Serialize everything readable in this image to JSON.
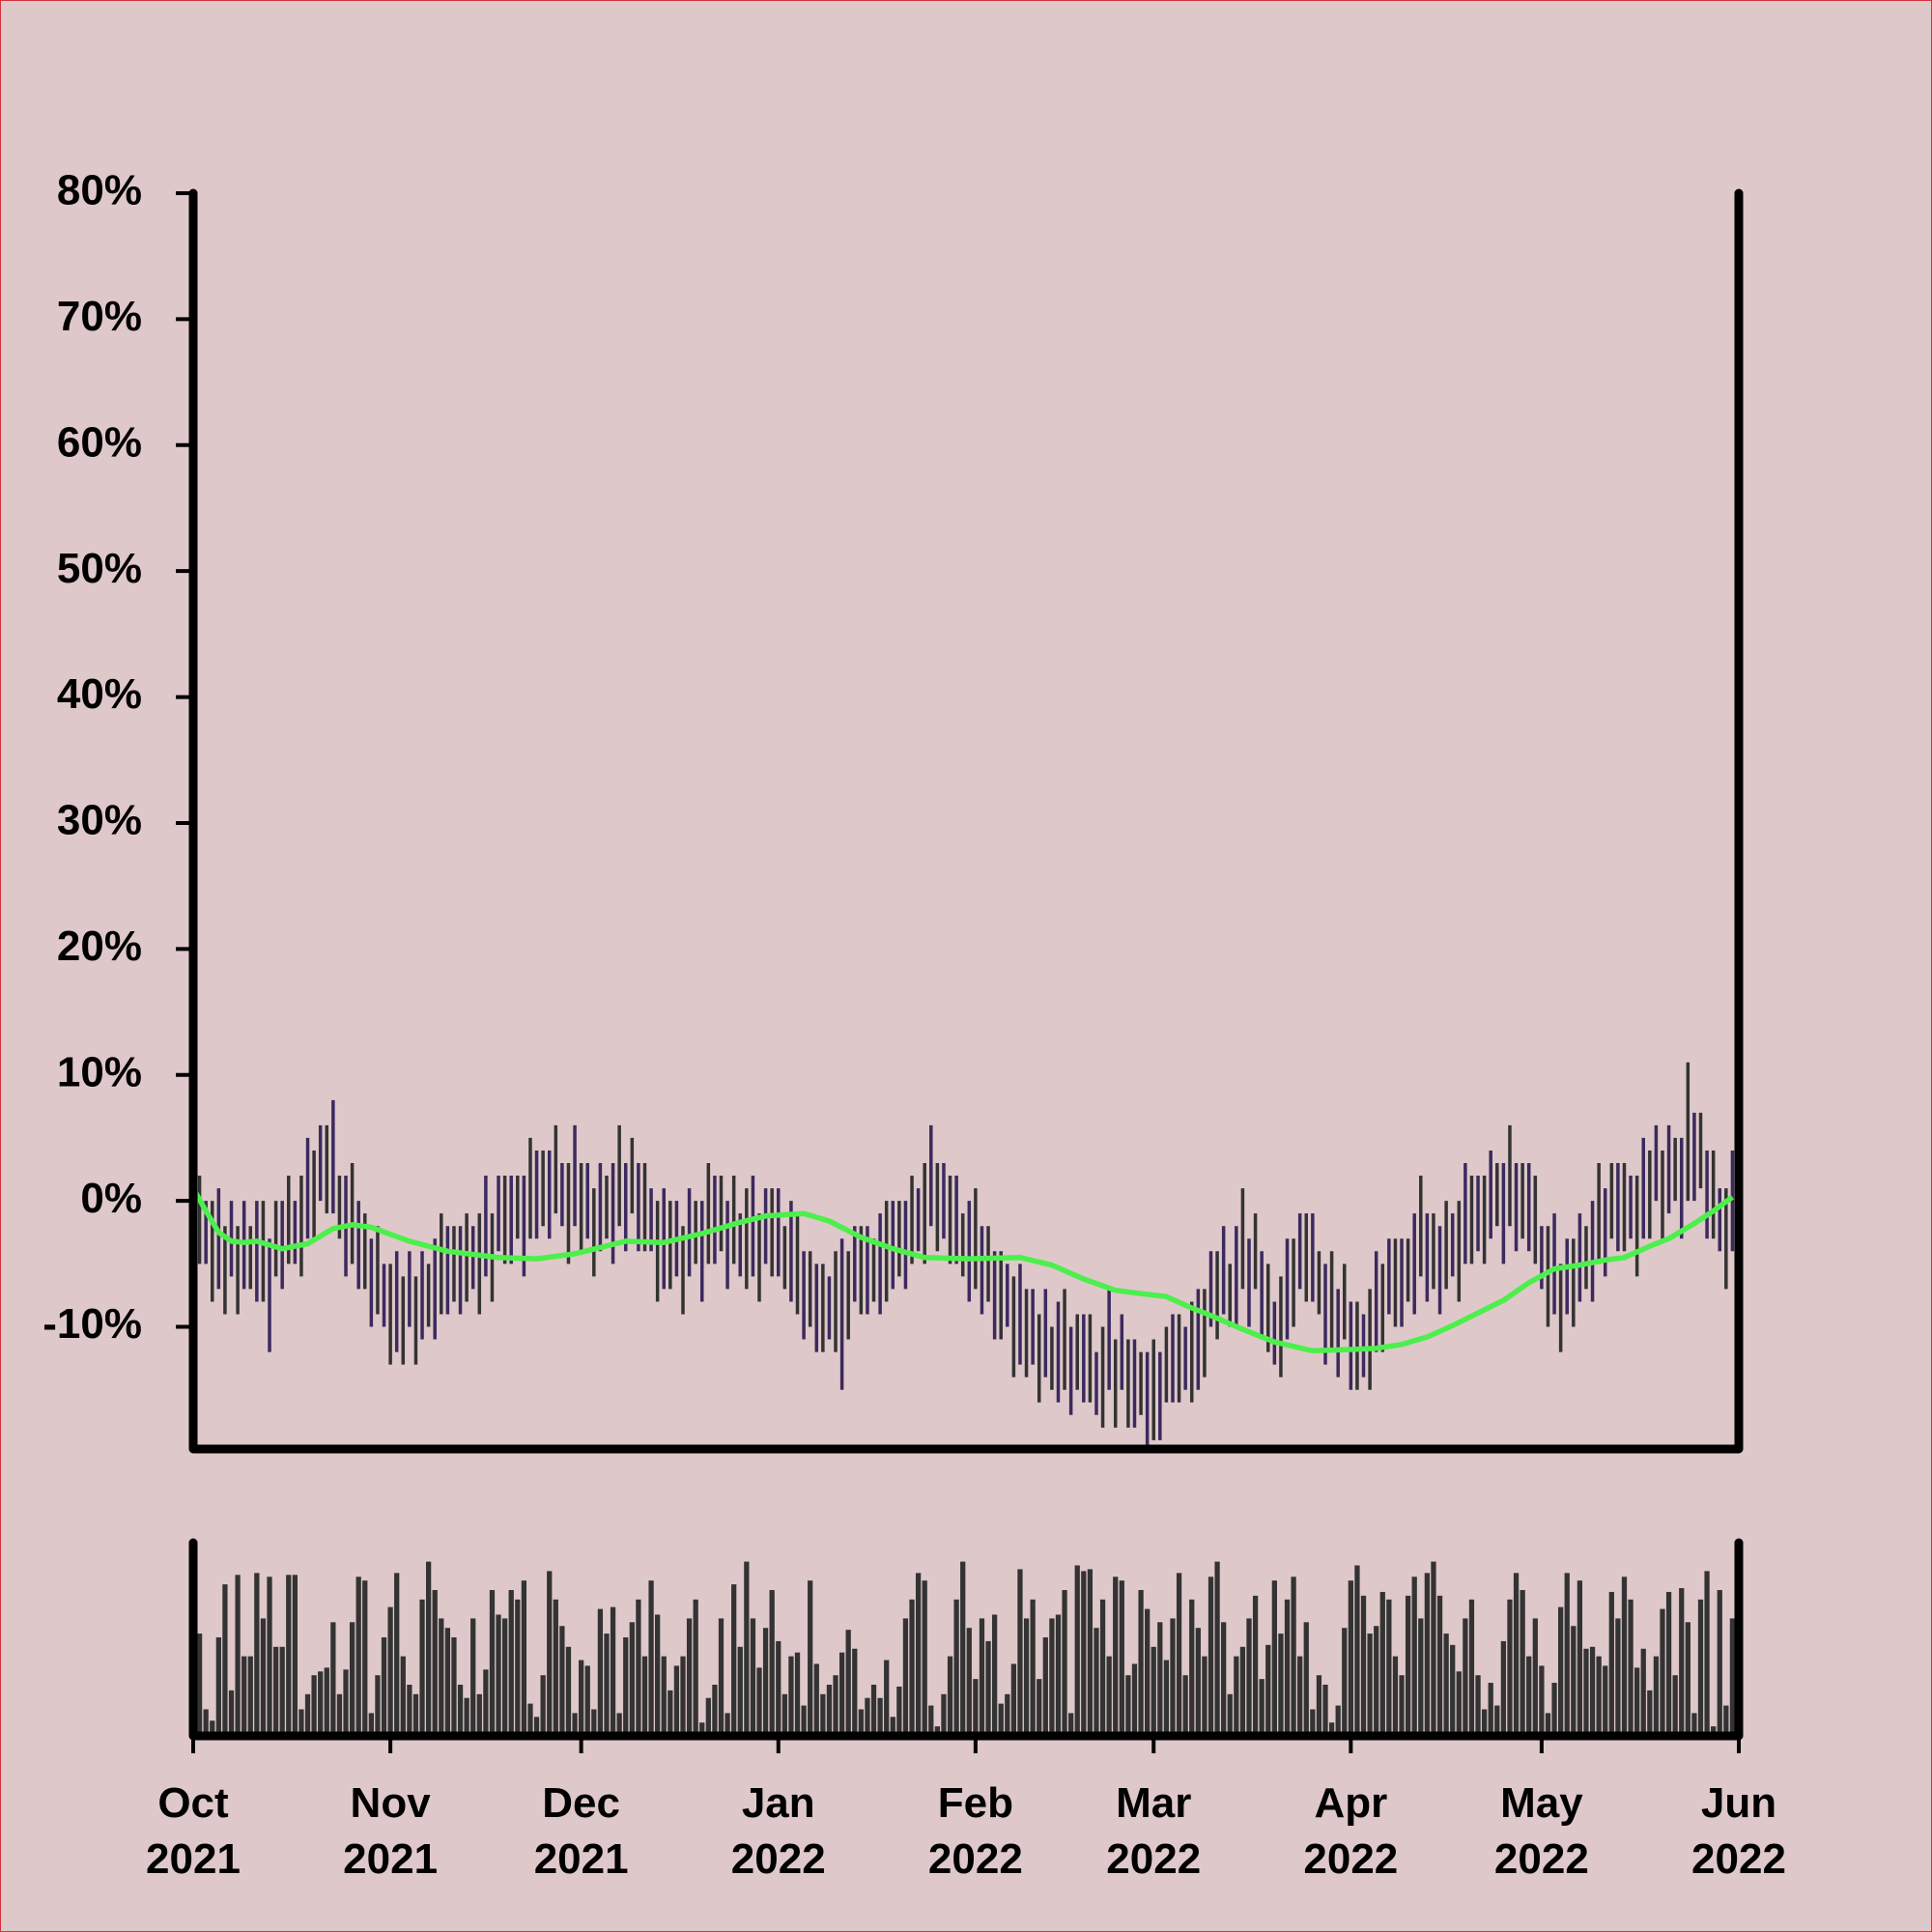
{
  "chart_data": [
    {
      "type": "hilo",
      "colors": [
        "#3b2a5e",
        "#333333"
      ],
      "ylim": [
        -19.7,
        80
      ],
      "xlim": [
        0,
        243
      ],
      "yticks": [
        {
          "value": -10,
          "label": "-10%"
        },
        {
          "value": 0,
          "label": "0%"
        },
        {
          "value": 10,
          "label": "10%"
        },
        {
          "value": 20,
          "label": "20%"
        },
        {
          "value": 30,
          "label": "30%"
        },
        {
          "value": 40,
          "label": "40%"
        },
        {
          "value": 50,
          "label": "50%"
        },
        {
          "value": 60,
          "label": "60%"
        },
        {
          "value": 70,
          "label": "70%"
        },
        {
          "value": 80,
          "label": "80%"
        }
      ],
      "x": [
        0,
        1,
        2,
        3,
        4,
        5,
        6,
        7,
        8,
        9,
        10,
        11,
        12,
        13,
        14,
        15,
        16,
        17,
        18,
        19,
        20,
        21,
        22,
        23,
        24,
        25,
        26,
        27,
        28,
        29,
        30,
        31,
        32,
        33,
        34,
        35,
        36,
        37,
        38,
        39,
        40,
        41,
        42,
        43,
        44,
        45,
        46,
        47,
        48,
        49,
        50,
        51,
        52,
        53,
        54,
        55,
        56,
        57,
        58,
        59,
        60,
        61,
        62,
        63,
        64,
        65,
        66,
        67,
        68,
        69,
        70,
        71,
        72,
        73,
        74,
        75,
        76,
        77,
        78,
        79,
        80,
        81,
        82,
        83,
        84,
        85,
        86,
        87,
        88,
        89,
        90,
        91,
        92,
        93,
        94,
        95,
        96,
        97,
        98,
        99,
        100,
        101,
        102,
        103,
        104,
        105,
        106,
        107,
        108,
        109,
        110,
        111,
        112,
        113,
        114,
        115,
        116,
        117,
        118,
        119,
        120,
        121,
        122,
        123,
        124,
        125,
        126,
        127,
        128,
        129,
        130,
        131,
        132,
        133,
        134,
        135,
        136,
        137,
        138,
        139,
        140,
        141,
        142,
        143,
        144,
        145,
        146,
        147,
        148,
        149,
        150,
        151,
        152,
        153,
        154,
        155,
        156,
        157,
        158,
        159,
        160,
        161,
        162,
        163,
        164,
        165,
        166,
        167,
        168,
        169,
        170,
        171,
        172,
        173,
        174,
        175,
        176,
        177,
        178,
        179,
        180,
        181,
        182,
        183,
        184,
        185,
        186,
        187,
        188,
        189,
        190,
        191,
        192,
        193,
        194,
        195,
        196,
        197,
        198,
        199,
        200,
        201,
        202,
        203,
        204,
        205,
        206,
        207,
        208,
        209,
        210,
        211,
        212,
        213,
        214,
        215,
        216,
        217,
        218,
        219,
        220,
        221,
        222,
        223,
        224,
        225,
        226,
        227,
        228,
        229,
        230,
        231,
        232,
        233,
        234,
        235,
        236,
        237,
        238,
        239,
        240,
        241,
        242
      ],
      "high": [
        2,
        2,
        0,
        0,
        1,
        -2,
        0,
        -2,
        0,
        -2,
        0,
        0,
        -3,
        0,
        0,
        2,
        0,
        2,
        5,
        4,
        6,
        6,
        8,
        2,
        2,
        3,
        0,
        -1,
        -3,
        -2,
        -5,
        -5,
        -4,
        -6,
        -4,
        -6,
        -4,
        -5,
        -3,
        -1,
        -2,
        -2,
        -2,
        -1,
        -2,
        -1,
        2,
        -1,
        2,
        2,
        2,
        2,
        2,
        5,
        4,
        4,
        4,
        6,
        3,
        3,
        6,
        3,
        3,
        1,
        3,
        2,
        3,
        6,
        3,
        5,
        3,
        3,
        1,
        0,
        1,
        0,
        0,
        -2,
        1,
        0,
        0,
        3,
        2,
        2,
        0,
        2,
        -1,
        1,
        2,
        -1,
        1,
        1,
        1,
        -2,
        0,
        -1,
        -4,
        -4,
        -5,
        -5,
        -6,
        -4,
        -3,
        -4,
        -2,
        -2,
        -2,
        -3,
        -1,
        0,
        0,
        0,
        0,
        2,
        1,
        3,
        6,
        3,
        3,
        2,
        2,
        -1,
        0,
        1,
        -2,
        -2,
        -4,
        -4,
        -5,
        -6,
        -5,
        -7,
        -7,
        -9,
        -7,
        -10,
        -8,
        -7,
        -10,
        -9,
        -9,
        -9,
        -12,
        -10,
        -7,
        -11,
        -9,
        -11,
        -11,
        -12,
        -12,
        -11,
        -12,
        -10,
        -9,
        -9,
        -10,
        -8,
        -7,
        -7,
        -4,
        -4,
        -2,
        -5,
        -2,
        1,
        -3,
        -1,
        -4,
        -5,
        -8,
        -6,
        -3,
        -3,
        -1,
        -1,
        -1,
        -4,
        -5,
        -4,
        -7,
        -5,
        -8,
        -8,
        -9,
        -7,
        -4,
        -5,
        -3,
        -3,
        -3,
        -3,
        -1,
        2,
        -1,
        -1,
        -2,
        0,
        -1,
        0,
        3,
        2,
        2,
        2,
        4,
        3,
        3,
        6,
        3,
        3,
        3,
        2,
        -2,
        -2,
        -1,
        -5,
        -3,
        -3,
        -1,
        -2,
        0,
        3,
        1,
        3,
        3,
        3,
        2,
        2,
        5,
        4,
        6,
        4,
        6,
        5,
        5,
        11,
        7,
        7,
        4,
        4,
        1,
        1,
        4
      ],
      "low": [
        -5,
        -5,
        -5,
        -8,
        -7,
        -9,
        -6,
        -9,
        -7,
        -7,
        -8,
        -8,
        -12,
        -6,
        -7,
        -5,
        -5,
        -6,
        -3,
        -3,
        0,
        -1,
        -1,
        -3,
        -6,
        -5,
        -7,
        -7,
        -10,
        -9,
        -10,
        -13,
        -12,
        -13,
        -10,
        -13,
        -11,
        -10,
        -11,
        -9,
        -9,
        -8,
        -9,
        -8,
        -7,
        -9,
        -6,
        -8,
        -4,
        -5,
        -5,
        -3,
        -6,
        -3,
        -3,
        -2,
        -3,
        -1,
        -2,
        -5,
        -2,
        -4,
        -3,
        -6,
        -4,
        -3,
        -5,
        -2,
        -4,
        -1,
        -4,
        -4,
        -4,
        -8,
        -7,
        -7,
        -6,
        -9,
        -6,
        -5,
        -8,
        -5,
        -5,
        -4,
        -7,
        -5,
        -6,
        -7,
        -6,
        -8,
        -5,
        -6,
        -6,
        -7,
        -8,
        -9,
        -11,
        -10,
        -12,
        -12,
        -11,
        -12,
        -15,
        -11,
        -8,
        -9,
        -9,
        -8,
        -9,
        -8,
        -7,
        -6,
        -7,
        -5,
        -4,
        -5,
        -2,
        -4,
        -3,
        -5,
        -5,
        -6,
        -8,
        -7,
        -9,
        -8,
        -11,
        -11,
        -10,
        -14,
        -13,
        -14,
        -13,
        -16,
        -14,
        -15,
        -16,
        -15,
        -17,
        -15,
        -16,
        -16,
        -17,
        -18,
        -15,
        -18,
        -15,
        -18,
        -18,
        -17,
        -20,
        -19,
        -19,
        -16,
        -16,
        -16,
        -15,
        -16,
        -15,
        -14,
        -10,
        -11,
        -9,
        -10,
        -10,
        -7,
        -10,
        -7,
        -11,
        -12,
        -13,
        -14,
        -11,
        -10,
        -7,
        -8,
        -8,
        -9,
        -13,
        -12,
        -14,
        -11,
        -15,
        -15,
        -14,
        -15,
        -12,
        -12,
        -9,
        -10,
        -10,
        -8,
        -9,
        -6,
        -8,
        -7,
        -9,
        -7,
        -6,
        -8,
        -5,
        -5,
        -4,
        -5,
        -3,
        -2,
        -5,
        -2,
        -4,
        -3,
        -4,
        -5,
        -7,
        -10,
        -9,
        -12,
        -9,
        -10,
        -8,
        -7,
        -8,
        -5,
        -6,
        -3,
        -4,
        -4,
        -3,
        -6,
        -3,
        -3,
        0,
        -3,
        -1,
        0,
        -3,
        0,
        0,
        1,
        -3,
        -3,
        -4,
        -7,
        -4
      ],
      "line": {
        "color": "#4cef4c",
        "x": [
          0,
          2,
          4,
          6,
          8,
          10,
          14,
          18,
          22,
          25,
          28,
          34,
          40,
          48,
          54,
          60,
          64,
          68,
          74,
          80,
          86,
          90,
          96,
          100,
          105,
          110,
          115,
          122,
          130,
          135,
          140,
          145,
          148,
          153,
          157,
          160,
          165,
          170,
          176,
          182,
          186,
          190,
          194,
          198,
          202,
          206,
          210,
          214,
          218,
          222,
          225,
          229,
          232,
          236,
          239,
          242
        ],
        "values": [
          1,
          -0.8,
          -2.5,
          -3.2,
          -3.3,
          -3.2,
          -3.8,
          -3.4,
          -2.2,
          -1.9,
          -2.1,
          -3.2,
          -4,
          -4.5,
          -4.6,
          -4.2,
          -3.7,
          -3.2,
          -3.3,
          -2.6,
          -1.7,
          -1.2,
          -1,
          -1.6,
          -2.9,
          -3.8,
          -4.5,
          -4.6,
          -4.5,
          -5.1,
          -6.2,
          -7.1,
          -7.3,
          -7.6,
          -8.5,
          -9.1,
          -10.2,
          -11.2,
          -11.9,
          -11.8,
          -11.7,
          -11.4,
          -10.8,
          -9.9,
          -8.9,
          -7.9,
          -6.5,
          -5.4,
          -5.1,
          -4.7,
          -4.5,
          -3.6,
          -3,
          -1.8,
          -0.8,
          0.3
        ]
      }
    },
    {
      "type": "bar",
      "color": "#333333",
      "ylim": [
        0,
        100
      ],
      "xlim": [
        0,
        243
      ],
      "xticks": [
        {
          "value": 0,
          "label": "Oct\n2021"
        },
        {
          "value": 31,
          "label": "Nov\n2021"
        },
        {
          "value": 61,
          "label": "Dec\n2021"
        },
        {
          "value": 92,
          "label": "Jan\n2022"
        },
        {
          "value": 123,
          "label": "Feb\n2022"
        },
        {
          "value": 151,
          "label": "Mar\n2022"
        },
        {
          "value": 182,
          "label": "Apr\n2022"
        },
        {
          "value": 212,
          "label": "May\n2022"
        },
        {
          "value": 243,
          "label": "Jun\n2022"
        }
      ],
      "values": [
        57,
        52,
        12,
        6,
        50,
        78,
        22,
        83,
        40,
        40,
        84,
        60,
        82,
        45,
        45,
        83,
        83,
        12,
        20,
        30,
        32,
        34,
        58,
        20,
        33,
        58,
        82,
        80,
        10,
        30,
        50,
        66,
        84,
        40,
        25,
        20,
        70,
        90,
        75,
        60,
        55,
        50,
        25,
        18,
        60,
        20,
        33,
        75,
        62,
        60,
        75,
        70,
        80,
        15,
        8,
        30,
        85,
        70,
        56,
        45,
        10,
        38,
        35,
        12,
        65,
        52,
        66,
        10,
        50,
        58,
        70,
        40,
        80,
        62,
        40,
        22,
        35,
        40,
        60,
        70,
        5,
        18,
        25,
        60,
        10,
        78,
        45,
        90,
        60,
        34,
        55,
        75,
        48,
        20,
        40,
        42,
        14,
        80,
        36,
        20,
        25,
        30,
        42,
        54,
        44,
        12,
        18,
        25,
        18,
        38,
        8,
        24,
        60,
        70,
        84,
        80,
        14,
        3,
        20,
        40,
        70,
        90,
        55,
        28,
        60,
        48,
        62,
        15,
        20,
        36,
        86,
        60,
        70,
        28,
        50,
        60,
        62,
        75,
        10,
        88,
        85,
        86,
        55,
        70,
        40,
        82,
        80,
        30,
        36,
        75,
        65,
        45,
        58,
        38,
        60,
        84,
        30,
        70,
        55,
        40,
        82,
        90,
        58,
        20,
        40,
        45,
        60,
        72,
        28,
        46,
        80,
        52,
        70,
        82,
        40,
        58,
        12,
        30,
        25,
        5,
        14,
        55,
        80,
        88,
        72,
        52,
        56,
        74,
        70,
        40,
        30,
        72,
        82,
        60,
        84,
        90,
        72,
        52,
        46,
        32,
        60,
        70,
        30,
        12,
        26,
        14,
        48,
        70,
        84,
        75,
        40,
        60,
        35,
        10,
        26,
        66,
        84,
        56,
        80,
        44,
        45,
        40,
        35,
        74,
        60,
        82,
        70,
        34,
        44,
        22,
        40,
        65,
        74,
        30,
        76,
        58,
        10,
        70,
        85,
        3,
        75,
        14,
        60
      ]
    }
  ]
}
